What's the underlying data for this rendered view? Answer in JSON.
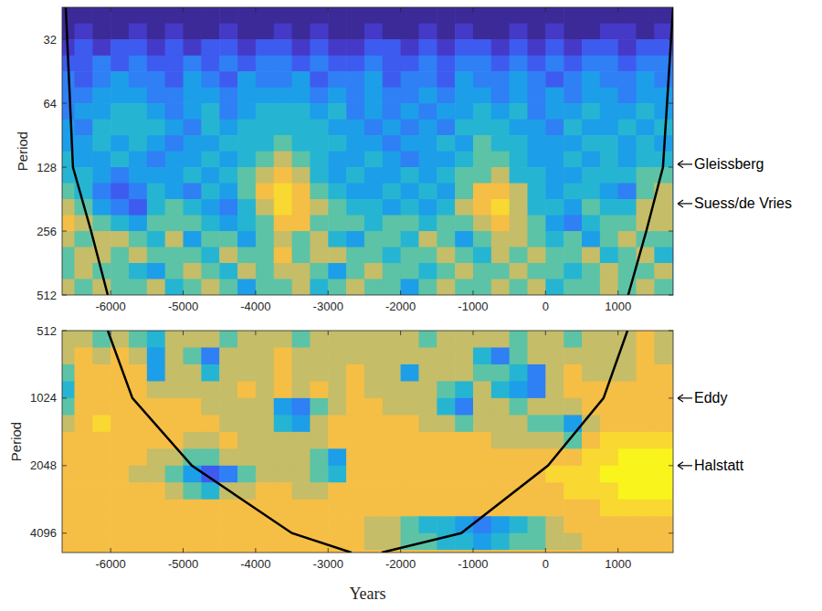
{
  "chart_data": [
    {
      "type": "heatmap",
      "y_label": "Period",
      "log": "y",
      "xlim": [
        -6670,
        1760
      ],
      "xticks": [
        -6000,
        -5000,
        -4000,
        -3000,
        -2000,
        -1000,
        0,
        1000
      ],
      "ylim": [
        22.6,
        512
      ],
      "yticks": [
        32,
        64,
        128,
        256,
        512
      ],
      "color_range": [
        0,
        10
      ],
      "x_bins": [
        -6750,
        -6500,
        -6250,
        -6000,
        -5750,
        -5500,
        -5250,
        -5000,
        -4750,
        -4500,
        -4250,
        -4000,
        -3750,
        -3500,
        -3250,
        -3000,
        -2750,
        -2500,
        -2250,
        -2000,
        -1750,
        -1500,
        -1250,
        -1000,
        -750,
        -500,
        -250,
        0,
        250,
        500,
        750,
        1000,
        1250,
        1500,
        1750,
        2000
      ],
      "y_bins": [
        22.6,
        26.9,
        32,
        38.1,
        45.3,
        53.8,
        64,
        76.1,
        90.5,
        107.6,
        128,
        152.2,
        181,
        215.3,
        256,
        304.4,
        362,
        430.5,
        512
      ],
      "cells": [
        [
          0,
          0,
          0,
          0,
          0,
          0,
          0,
          0,
          0,
          0,
          0,
          0,
          0,
          0,
          0,
          0,
          0,
          0,
          0,
          0,
          0,
          0,
          0,
          0,
          0,
          0,
          0,
          0,
          0,
          0,
          0,
          0,
          0,
          0,
          0
        ],
        [
          0,
          1,
          0,
          0,
          1,
          0,
          1,
          0,
          0,
          1,
          0,
          0,
          1,
          0,
          1,
          0,
          0,
          1,
          0,
          0,
          1,
          0,
          1,
          0,
          0,
          1,
          0,
          1,
          0,
          0,
          1,
          1,
          0,
          1,
          1
        ],
        [
          1,
          2,
          1,
          2,
          2,
          1,
          2,
          1,
          2,
          2,
          1,
          2,
          2,
          1,
          2,
          1,
          1,
          2,
          2,
          1,
          2,
          1,
          2,
          2,
          1,
          2,
          1,
          2,
          1,
          2,
          2,
          1,
          2,
          2,
          1
        ],
        [
          2,
          2,
          3,
          2,
          3,
          2,
          2,
          3,
          2,
          3,
          2,
          3,
          3,
          2,
          3,
          2,
          2,
          3,
          2,
          2,
          3,
          2,
          3,
          3,
          2,
          3,
          2,
          3,
          2,
          3,
          3,
          2,
          3,
          3,
          2
        ],
        [
          3,
          2,
          3,
          4,
          3,
          3,
          2,
          4,
          3,
          2,
          4,
          3,
          3,
          4,
          2,
          3,
          3,
          4,
          2,
          3,
          3,
          2,
          4,
          3,
          3,
          4,
          3,
          2,
          3,
          4,
          3,
          3,
          4,
          3,
          3
        ],
        [
          3,
          3,
          4,
          4,
          4,
          3,
          3,
          4,
          4,
          3,
          4,
          4,
          4,
          4,
          3,
          4,
          3,
          4,
          3,
          3,
          4,
          3,
          4,
          4,
          3,
          4,
          3,
          4,
          3,
          4,
          4,
          3,
          4,
          4,
          3
        ],
        [
          3,
          4,
          4,
          5,
          5,
          4,
          3,
          4,
          5,
          3,
          4,
          5,
          5,
          5,
          4,
          5,
          3,
          4,
          3,
          4,
          3,
          4,
          4,
          5,
          4,
          5,
          3,
          4,
          4,
          5,
          4,
          4,
          5,
          4,
          3
        ],
        [
          4,
          3,
          5,
          5,
          5,
          5,
          4,
          3,
          5,
          4,
          5,
          5,
          5,
          5,
          5,
          4,
          4,
          3,
          4,
          3,
          4,
          3,
          5,
          5,
          5,
          4,
          4,
          3,
          5,
          4,
          4,
          5,
          4,
          5,
          4
        ],
        [
          4,
          4,
          5,
          4,
          5,
          4,
          3,
          4,
          4,
          5,
          5,
          5,
          6,
          5,
          5,
          5,
          4,
          4,
          3,
          4,
          4,
          5,
          4,
          6,
          5,
          5,
          4,
          4,
          4,
          5,
          5,
          4,
          5,
          4,
          4
        ],
        [
          5,
          4,
          4,
          5,
          4,
          3,
          4,
          4,
          5,
          4,
          5,
          6,
          7,
          6,
          5,
          4,
          4,
          5,
          4,
          3,
          4,
          4,
          5,
          6,
          6,
          5,
          4,
          4,
          5,
          4,
          5,
          4,
          5,
          5,
          4
        ],
        [
          5,
          5,
          4,
          3,
          4,
          4,
          4,
          5,
          4,
          5,
          6,
          7,
          8,
          7,
          5,
          4,
          5,
          4,
          4,
          5,
          4,
          5,
          6,
          6,
          7,
          5,
          5,
          4,
          4,
          5,
          5,
          5,
          6,
          6,
          4
        ],
        [
          6,
          5,
          3,
          2,
          3,
          5,
          4,
          3,
          5,
          4,
          6,
          8,
          9,
          8,
          6,
          5,
          4,
          4,
          5,
          4,
          5,
          4,
          6,
          8,
          8,
          7,
          5,
          4,
          5,
          5,
          4,
          3,
          6,
          7,
          5
        ],
        [
          7,
          6,
          4,
          3,
          2,
          5,
          6,
          5,
          4,
          3,
          5,
          7,
          9,
          8,
          7,
          6,
          5,
          5,
          4,
          5,
          4,
          5,
          7,
          8,
          9,
          7,
          5,
          5,
          4,
          6,
          5,
          5,
          7,
          7,
          6
        ],
        [
          8,
          7,
          6,
          5,
          4,
          6,
          6,
          6,
          5,
          4,
          5,
          6,
          8,
          8,
          6,
          6,
          6,
          5,
          6,
          6,
          5,
          6,
          6,
          7,
          8,
          7,
          6,
          4,
          3,
          5,
          6,
          6,
          7,
          7,
          6
        ],
        [
          7,
          6,
          7,
          7,
          6,
          5,
          7,
          4,
          6,
          6,
          4,
          6,
          7,
          6,
          7,
          5,
          4,
          6,
          6,
          5,
          7,
          6,
          4,
          6,
          7,
          7,
          6,
          5,
          6,
          4,
          6,
          7,
          6,
          6,
          5
        ],
        [
          6,
          7,
          7,
          6,
          7,
          6,
          6,
          6,
          5,
          7,
          6,
          6,
          8,
          6,
          7,
          7,
          6,
          6,
          5,
          6,
          6,
          7,
          6,
          5,
          7,
          6,
          7,
          6,
          6,
          7,
          5,
          6,
          7,
          5,
          4
        ],
        [
          6,
          7,
          6,
          6,
          5,
          4,
          6,
          7,
          6,
          5,
          7,
          6,
          7,
          7,
          6,
          4,
          6,
          7,
          6,
          6,
          5,
          6,
          7,
          6,
          6,
          7,
          6,
          6,
          5,
          6,
          7,
          6,
          6,
          7,
          5
        ],
        [
          7,
          6,
          7,
          6,
          6,
          7,
          5,
          6,
          7,
          6,
          4,
          6,
          6,
          7,
          5,
          6,
          7,
          6,
          6,
          4,
          6,
          7,
          6,
          6,
          7,
          6,
          7,
          5,
          6,
          6,
          7,
          6,
          7,
          6,
          5
        ]
      ],
      "series": [
        {
          "type": "line",
          "color": "#000000",
          "x": [
            -6620,
            -6520,
            -6270,
            -6040,
            null,
            1140,
            1390,
            1620,
            1760
          ],
          "values": [
            22.6,
            128,
            256,
            512,
            null,
            512,
            256,
            128,
            22.6
          ]
        }
      ],
      "annotations": [
        {
          "text": "Gleissberg",
          "y": 124
        },
        {
          "text": "Suess/de Vries",
          "y": 190
        }
      ]
    },
    {
      "type": "heatmap",
      "y_label": "Period",
      "x_label": "Years",
      "log": "y",
      "xlim": [
        -6670,
        1760
      ],
      "xticks": [
        -6000,
        -5000,
        -4000,
        -3000,
        -2000,
        -1000,
        0,
        1000
      ],
      "ylim": [
        512,
        5000
      ],
      "yticks": [
        512,
        1024,
        2048,
        4096
      ],
      "color_range": [
        0,
        10
      ],
      "x_bins": [
        -6750,
        -6500,
        -6250,
        -6000,
        -5750,
        -5500,
        -5250,
        -5000,
        -4750,
        -4500,
        -4250,
        -4000,
        -3750,
        -3500,
        -3250,
        -3000,
        -2750,
        -2500,
        -2250,
        -2000,
        -1750,
        -1500,
        -1250,
        -1000,
        -750,
        -500,
        -250,
        0,
        250,
        500,
        750,
        1000,
        1250,
        1500,
        1750,
        2000
      ],
      "y_bins": [
        512,
        609,
        724,
        861,
        1024,
        1218,
        1448,
        1722,
        2048,
        2435,
        2896,
        3444,
        4096,
        4871,
        5793
      ],
      "cells": [
        [
          7,
          7,
          6,
          7,
          6,
          5,
          7,
          7,
          7,
          6,
          7,
          7,
          7,
          6,
          7,
          7,
          7,
          7,
          7,
          7,
          6,
          7,
          7,
          7,
          7,
          6,
          7,
          7,
          6,
          7,
          7,
          7,
          8,
          7,
          7
        ],
        [
          7,
          8,
          7,
          8,
          7,
          4,
          7,
          6,
          3,
          7,
          7,
          7,
          8,
          7,
          7,
          7,
          7,
          7,
          7,
          7,
          7,
          7,
          7,
          5,
          3,
          6,
          7,
          7,
          7,
          7,
          7,
          7,
          8,
          7,
          7
        ],
        [
          6,
          8,
          8,
          8,
          8,
          4,
          7,
          7,
          5,
          7,
          7,
          7,
          8,
          7,
          7,
          7,
          8,
          7,
          7,
          4,
          7,
          7,
          7,
          6,
          6,
          5,
          3,
          7,
          8,
          7,
          7,
          7,
          8,
          8,
          7
        ],
        [
          5,
          8,
          8,
          8,
          8,
          7,
          7,
          7,
          7,
          7,
          8,
          7,
          8,
          7,
          8,
          7,
          8,
          7,
          7,
          7,
          7,
          6,
          5,
          7,
          5,
          4,
          3,
          7,
          8,
          8,
          8,
          8,
          8,
          8,
          8
        ],
        [
          6,
          8,
          8,
          8,
          8,
          8,
          8,
          8,
          7,
          7,
          7,
          7,
          4,
          3,
          6,
          7,
          8,
          8,
          7,
          7,
          7,
          5,
          3,
          7,
          7,
          6,
          7,
          7,
          7,
          8,
          8,
          8,
          8,
          8,
          8
        ],
        [
          7,
          8,
          9,
          8,
          8,
          8,
          8,
          8,
          8,
          7,
          7,
          7,
          5,
          4,
          7,
          8,
          8,
          8,
          8,
          8,
          7,
          7,
          6,
          7,
          7,
          7,
          6,
          6,
          4,
          7,
          8,
          8,
          8,
          8,
          8
        ],
        [
          8,
          8,
          8,
          8,
          8,
          8,
          8,
          7,
          7,
          8,
          7,
          7,
          7,
          7,
          7,
          8,
          8,
          8,
          8,
          8,
          8,
          8,
          8,
          8,
          7,
          7,
          7,
          7,
          6,
          8,
          9,
          9,
          9,
          9,
          9
        ],
        [
          8,
          8,
          8,
          8,
          8,
          7,
          7,
          6,
          6,
          7,
          7,
          7,
          7,
          7,
          6,
          4,
          8,
          8,
          8,
          8,
          8,
          8,
          8,
          8,
          8,
          8,
          8,
          8,
          8,
          9,
          9,
          10,
          10,
          10,
          10
        ],
        [
          8,
          8,
          8,
          8,
          7,
          7,
          6,
          4,
          2,
          3,
          6,
          7,
          7,
          7,
          6,
          5,
          8,
          8,
          8,
          8,
          8,
          8,
          8,
          8,
          8,
          8,
          8,
          9,
          9,
          9,
          10,
          10,
          10,
          10,
          10
        ],
        [
          8,
          8,
          8,
          8,
          8,
          8,
          7,
          6,
          5,
          7,
          7,
          8,
          8,
          7,
          7,
          8,
          8,
          8,
          8,
          8,
          8,
          8,
          8,
          8,
          8,
          8,
          8,
          8,
          9,
          9,
          9,
          10,
          10,
          10,
          9
        ],
        [
          8,
          8,
          8,
          8,
          8,
          8,
          8,
          8,
          8,
          8,
          8,
          8,
          8,
          8,
          8,
          8,
          8,
          8,
          8,
          8,
          8,
          8,
          8,
          8,
          8,
          8,
          8,
          8,
          8,
          8,
          9,
          9,
          9,
          9,
          9
        ],
        [
          8,
          8,
          8,
          8,
          8,
          8,
          8,
          8,
          8,
          8,
          8,
          8,
          8,
          8,
          8,
          8,
          8,
          7,
          7,
          6,
          5,
          5,
          4,
          3,
          4,
          5,
          6,
          7,
          8,
          8,
          8,
          8,
          8,
          8,
          8
        ],
        [
          8,
          8,
          8,
          8,
          8,
          8,
          8,
          8,
          8,
          8,
          8,
          8,
          8,
          8,
          8,
          8,
          8,
          7,
          7,
          6,
          6,
          5,
          5,
          4,
          5,
          6,
          6,
          7,
          7,
          8,
          8,
          8,
          8,
          8,
          8
        ],
        [
          8,
          8,
          8,
          8,
          8,
          8,
          8,
          8,
          8,
          8,
          8,
          8,
          8,
          8,
          8,
          8,
          8,
          8,
          8,
          8,
          8,
          8,
          8,
          8,
          8,
          8,
          8,
          8,
          8,
          8,
          8,
          8,
          8,
          8,
          8
        ]
      ],
      "series": [
        {
          "type": "line",
          "color": "#000000",
          "x": [
            -6040,
            -5700,
            -4880,
            -3500,
            -2680,
            null,
            -2260,
            -1164,
            33,
            800,
            1130
          ],
          "values": [
            512,
            1024,
            2048,
            4096,
            5000,
            null,
            5000,
            4096,
            2048,
            1024,
            512
          ]
        }
      ],
      "annotations": [
        {
          "text": "Eddy",
          "y": 1024
        },
        {
          "text": "Halstatt",
          "y": 2048
        }
      ]
    }
  ]
}
